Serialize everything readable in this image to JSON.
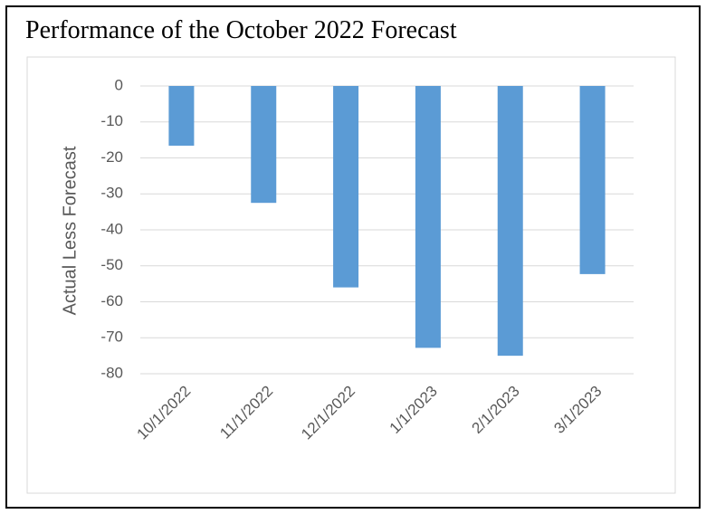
{
  "chart_data": {
    "type": "bar",
    "title": "Performance of the October 2022 Forecast",
    "y_label": "Actual Less Forecast",
    "categories": [
      "10/1/2022",
      "11/1/2022",
      "12/1/2022",
      "1/1/2023",
      "2/1/2023",
      "3/1/2023"
    ],
    "values": [
      -16.6,
      -32.5,
      -56,
      -72.8,
      -75,
      -52.3
    ],
    "color": "#5b9bd5",
    "ylim": [
      -80,
      0
    ],
    "yticks": [
      0,
      -10,
      -20,
      -30,
      -40,
      -50,
      -60,
      -70,
      -80
    ],
    "grid": true
  }
}
